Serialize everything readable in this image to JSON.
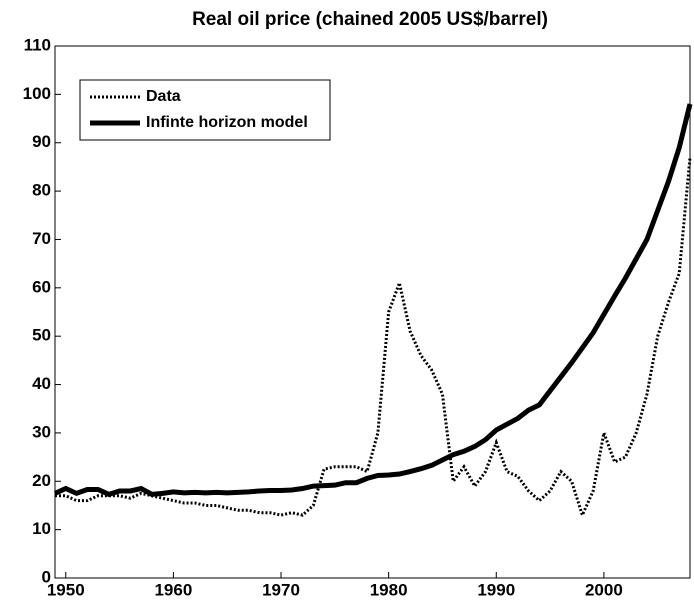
{
  "chart_data": {
    "type": "line",
    "title": "Real oil price (chained 2005 US$/barrel)",
    "x": [
      1949,
      1950,
      1951,
      1952,
      1953,
      1954,
      1955,
      1956,
      1957,
      1958,
      1959,
      1960,
      1961,
      1962,
      1963,
      1964,
      1965,
      1966,
      1967,
      1968,
      1969,
      1970,
      1971,
      1972,
      1973,
      1974,
      1975,
      1976,
      1977,
      1978,
      1979,
      1980,
      1981,
      1982,
      1983,
      1984,
      1985,
      1986,
      1987,
      1988,
      1989,
      1990,
      1991,
      1992,
      1993,
      1994,
      1995,
      1996,
      1997,
      1998,
      1999,
      2000,
      2001,
      2002,
      2003,
      2004,
      2005,
      2006,
      2007,
      2008
    ],
    "series": [
      {
        "name": "Data",
        "color": "#000000",
        "style": "dotted",
        "values": [
          17,
          17,
          16,
          16,
          17,
          17,
          17,
          16.5,
          17.5,
          17,
          16.5,
          16,
          15.5,
          15.5,
          15,
          15,
          14.5,
          14,
          14,
          13.5,
          13.5,
          13,
          13.5,
          13,
          15,
          22.5,
          23,
          23,
          23,
          22,
          30,
          55,
          61,
          51,
          46,
          43,
          38,
          20,
          23,
          19,
          22,
          28,
          22,
          21,
          18,
          16,
          18,
          22,
          20,
          13,
          18,
          30,
          24,
          25,
          30,
          38,
          50,
          57,
          63,
          87
        ]
      },
      {
        "name": "Infinte horizon model",
        "color": "#000000",
        "style": "solid",
        "values": [
          17.5,
          18.5,
          17.5,
          18.3,
          18.3,
          17.3,
          18,
          18,
          18.5,
          17.3,
          17.5,
          17.8,
          17.6,
          17.7,
          17.6,
          17.7,
          17.6,
          17.7,
          17.8,
          18,
          18.1,
          18.1,
          18.2,
          18.5,
          19,
          19.1,
          19.2,
          19.7,
          19.7,
          20.6,
          21.2,
          21.3,
          21.5,
          22,
          22.6,
          23.3,
          24.4,
          25.5,
          26.2,
          27.2,
          28.6,
          30.6,
          31.8,
          33,
          34.7,
          35.8,
          38.7,
          41.6,
          44.5,
          47.6,
          50.7,
          54.5,
          58.3,
          62,
          66,
          70,
          76,
          82,
          89,
          98
        ]
      }
    ],
    "xlim": [
      1949,
      2008
    ],
    "xticks": [
      1950,
      1960,
      1970,
      1980,
      1990,
      2000
    ],
    "ylim": [
      0,
      110
    ],
    "yticks": [
      0,
      10,
      20,
      30,
      40,
      50,
      60,
      70,
      80,
      90,
      100,
      110
    ],
    "legend": "upper left"
  }
}
